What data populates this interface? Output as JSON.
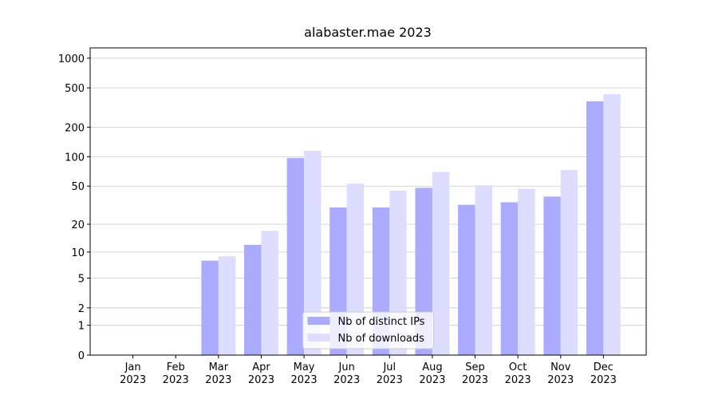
{
  "chart_data": {
    "type": "bar",
    "title": "alabaster.mae 2023",
    "categories": [
      "Jan\n2023",
      "Feb\n2023",
      "Mar\n2023",
      "Apr\n2023",
      "May\n2023",
      "Jun\n2023",
      "Jul\n2023",
      "Aug\n2023",
      "Sep\n2023",
      "Oct\n2023",
      "Nov\n2023",
      "Dec\n2023"
    ],
    "series": [
      {
        "name": "Nb of distinct IPs",
        "color": "#aaaaff",
        "values": [
          0,
          0,
          8,
          12,
          97,
          30,
          30,
          48,
          32,
          34,
          39,
          366
        ]
      },
      {
        "name": "Nb of downloads",
        "color": "#ddddff",
        "values": [
          0,
          0,
          9,
          17,
          115,
          53,
          45,
          70,
          51,
          47,
          73,
          432
        ]
      }
    ],
    "ylim": [
      0,
      1270
    ],
    "yticks": [
      0,
      1,
      2,
      5,
      10,
      20,
      50,
      100,
      200,
      500,
      1000
    ],
    "yscale": "log1p",
    "grid": true,
    "legend": "lower center"
  }
}
